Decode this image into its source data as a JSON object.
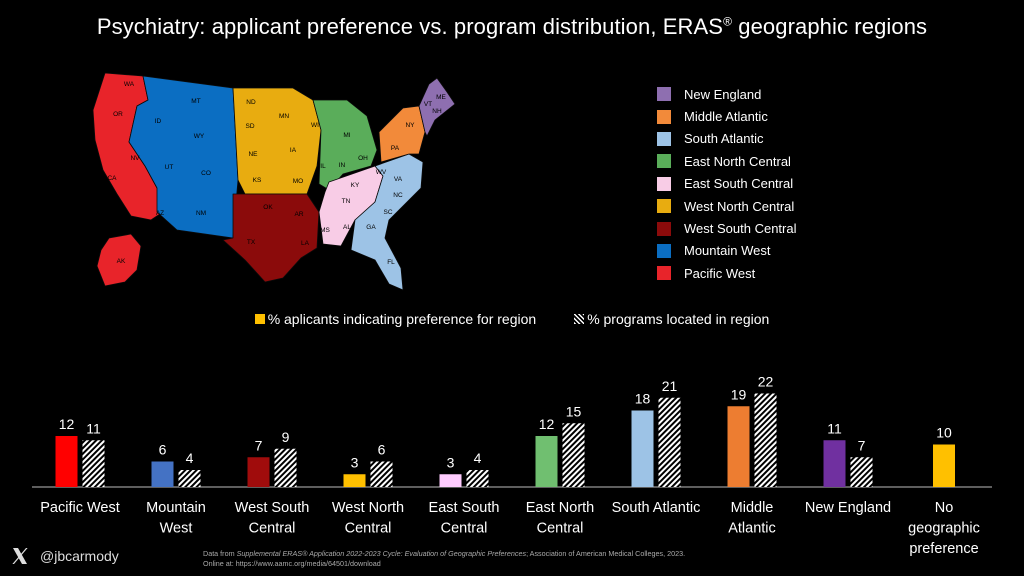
{
  "title_main": "Psychiatry: applicant preference vs. program distribution, ERAS",
  "title_sup": "®",
  "title_tail": " geographic regions",
  "legend": [
    {
      "label": "New England",
      "color": "#8e6fb0"
    },
    {
      "label": "Middle Atlantic",
      "color": "#f28a3a"
    },
    {
      "label": "South Atlantic",
      "color": "#9dc3e6"
    },
    {
      "label": "East North Central",
      "color": "#5aad5a"
    },
    {
      "label": "East South Central",
      "color": "#f8cce6"
    },
    {
      "label": "West North Central",
      "color": "#e8ac10"
    },
    {
      "label": "West South Central",
      "color": "#8b0b0b"
    },
    {
      "label": "Mountain West",
      "color": "#0b6ec2"
    },
    {
      "label": "Pacific West",
      "color": "#e8242a"
    }
  ],
  "map_states": [
    "WA",
    "OR",
    "CA",
    "ID",
    "NV",
    "MT",
    "WY",
    "UT",
    "CO",
    "AZ",
    "NM",
    "ND",
    "SD",
    "NE",
    "KS",
    "MN",
    "IA",
    "MO",
    "OK",
    "TX",
    "AR",
    "LA",
    "WI",
    "IL",
    "MI",
    "IN",
    "OH",
    "KY",
    "TN",
    "MS",
    "AL",
    "GA",
    "FL",
    "SC",
    "NC",
    "VA",
    "WV",
    "PA",
    "NY",
    "ME",
    "NH",
    "VT",
    "MA",
    "AK"
  ],
  "chart_data": {
    "type": "bar",
    "categories": [
      "Pacific West",
      "Mountain West",
      "West South Central",
      "West North Central",
      "East South Central",
      "East North Central",
      "South Atlantic",
      "Middle Atlantic",
      "New England",
      "No geographic preference"
    ],
    "category_lines": [
      [
        "Pacific West"
      ],
      [
        "Mountain",
        "West"
      ],
      [
        "West South",
        "Central"
      ],
      [
        "West North",
        "Central"
      ],
      [
        "East South",
        "Central"
      ],
      [
        "East North",
        "Central"
      ],
      [
        "South Atlantic"
      ],
      [
        "Middle",
        "Atlantic"
      ],
      [
        "New England"
      ],
      [
        "No",
        "geographic",
        "preference"
      ]
    ],
    "series": [
      {
        "name": "% aplicants indicating preference for region",
        "values": [
          12,
          6,
          7,
          3,
          3,
          12,
          18,
          19,
          11,
          10
        ]
      },
      {
        "name": "% programs located in region",
        "values": [
          11,
          4,
          9,
          6,
          4,
          15,
          21,
          22,
          7,
          null
        ]
      }
    ],
    "bar_colors": [
      "#ff0000",
      "#4472c4",
      "#a00c0c",
      "#ffc000",
      "#ffccff",
      "#70bf70",
      "#9dc3e6",
      "#ed7d31",
      "#7030a0",
      "#ffc000"
    ],
    "hatch_color": "#ffffff",
    "title": "",
    "xlabel": "",
    "ylabel": "",
    "ylim": [
      0,
      24
    ],
    "grid": false,
    "legend_position": "top-center"
  },
  "handle": "@jbcarmody",
  "source_prefix": "Data from ",
  "source_title": "Supplemental ERAS® Application 2022-2023 Cycle: Evaluation of Geographic Preferences",
  "source_rest": "; Association of American Medical Colleges, 2023.",
  "source_url": "Online at: https://www.aamc.org/media/64501/download"
}
